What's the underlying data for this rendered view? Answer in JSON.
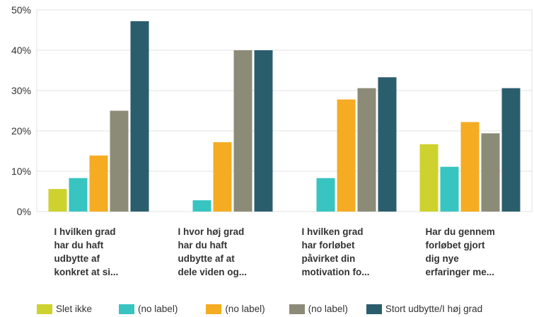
{
  "chart_data": {
    "type": "bar",
    "categories": [
      [
        "I hvilken grad",
        "har du haft",
        "udbytte af",
        "konkret at si..."
      ],
      [
        "I hvor høj grad",
        "har du haft",
        "udbytte af at",
        "dele viden og..."
      ],
      [
        "I hvilken grad",
        "har forløbet",
        "påvirket din",
        "motivation fo..."
      ],
      [
        "Har du gennem",
        "forløbet gjort",
        "dig nye",
        "erfaringer me..."
      ]
    ],
    "series": [
      {
        "name": "Slet ikke",
        "color": "#cdd22f",
        "values": [
          5.6,
          0,
          0,
          16.7
        ]
      },
      {
        "name": "(no label)",
        "color": "#38c4c0",
        "values": [
          8.3,
          2.8,
          8.3,
          11.1
        ]
      },
      {
        "name": "(no label)",
        "color": "#f5ac22",
        "values": [
          13.9,
          17.2,
          27.8,
          22.2
        ]
      },
      {
        "name": "(no label)",
        "color": "#8c8b78",
        "values": [
          25.0,
          40.0,
          30.6,
          19.4
        ]
      },
      {
        "name": "Stort udbytte/I høj grad",
        "color": "#2b5e6d",
        "values": [
          47.2,
          40.0,
          33.3,
          30.6
        ]
      }
    ],
    "y_ticks": [
      "0%",
      "10%",
      "20%",
      "30%",
      "40%",
      "50%"
    ],
    "ylim": [
      0,
      50
    ],
    "grid": true,
    "legend_position": "bottom"
  }
}
